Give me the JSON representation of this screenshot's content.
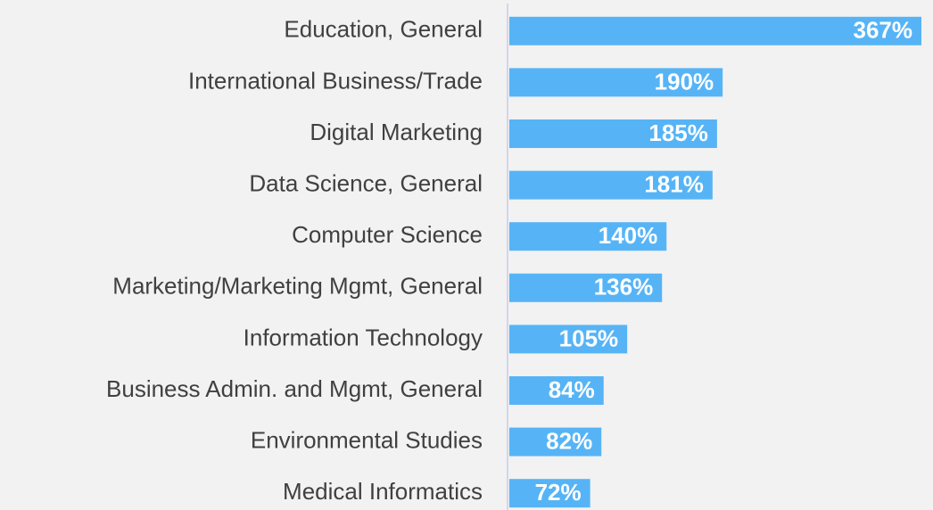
{
  "chart_data": {
    "type": "bar",
    "orientation": "horizontal",
    "categories": [
      "Education, General",
      "International Business/Trade",
      "Digital Marketing",
      "Data Science, General",
      "Computer Science",
      "Marketing/Marketing Mgmt, General",
      "Information Technology",
      "Business Admin. and Mgmt, General",
      "Environmental Studies",
      "Medical Informatics"
    ],
    "values": [
      367,
      190,
      185,
      181,
      140,
      136,
      105,
      84,
      82,
      72
    ],
    "value_labels": [
      "367%",
      "190%",
      "185%",
      "181%",
      "140%",
      "136%",
      "105%",
      "84%",
      "82%",
      "72%"
    ],
    "color": "#56b4f6"
  }
}
